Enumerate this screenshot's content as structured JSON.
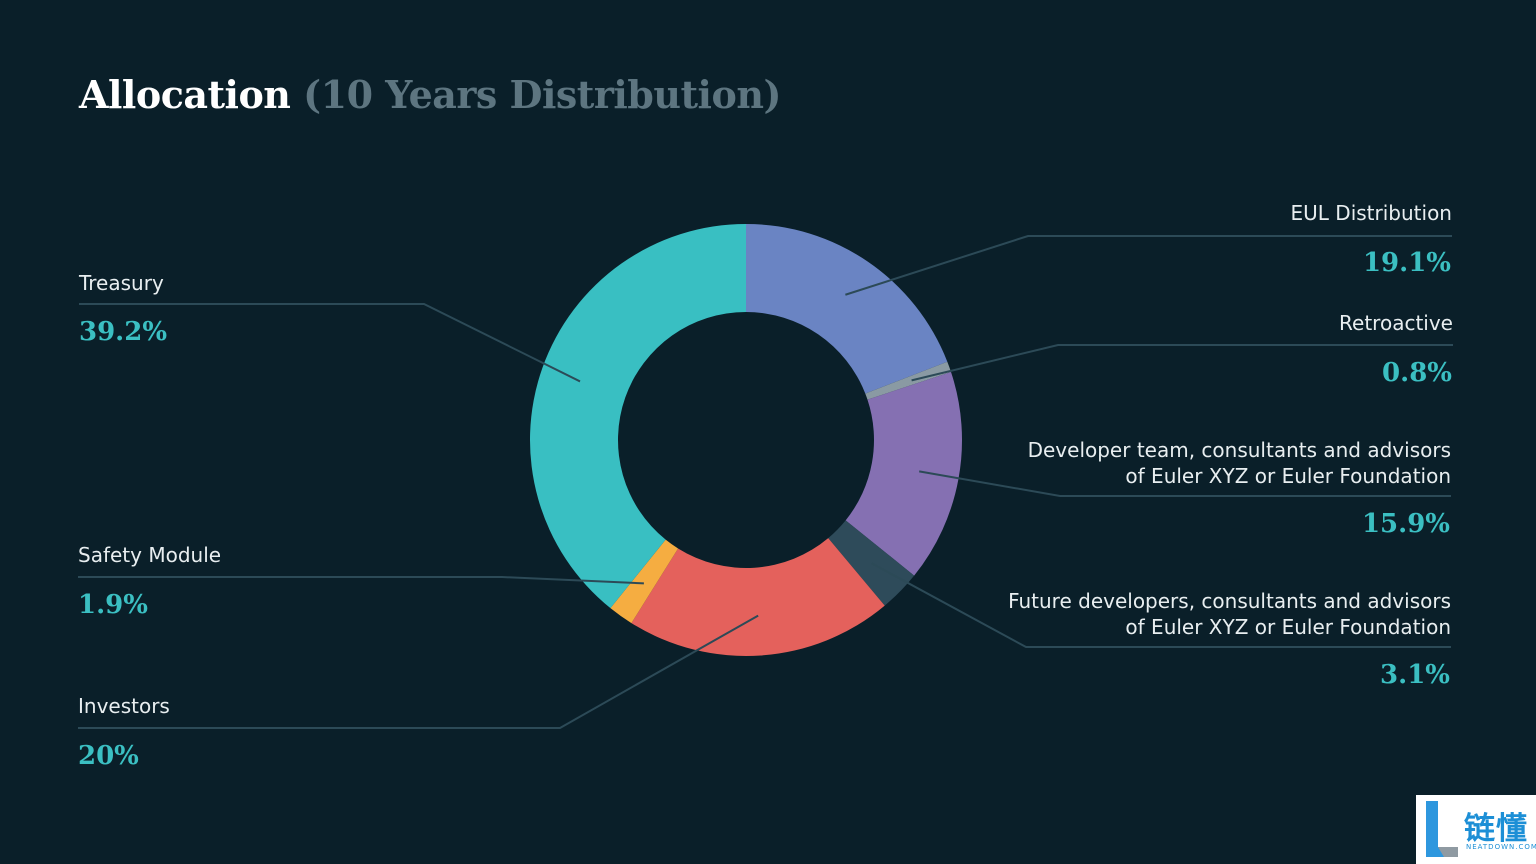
{
  "title": {
    "main": "Allocation",
    "sub": "(10 Years Distribution)"
  },
  "chart_data": {
    "type": "pie",
    "style": "donut",
    "start_angle_deg": 0,
    "direction": "clockwise",
    "slices": [
      {
        "label": "EUL Distribution",
        "value": 19.1,
        "value_label": "19.1%",
        "color": "#6a84c3"
      },
      {
        "label": "Retroactive",
        "value": 0.8,
        "value_label": "0.8%",
        "color": "#8a9aa3"
      },
      {
        "label": "Developer team, consultants and advisors of Euler XYZ or Euler Foundation",
        "label_lines": [
          "Developer team, consultants and advisors",
          "of Euler XYZ or Euler Foundation"
        ],
        "value": 15.9,
        "value_label": "15.9%",
        "color": "#8570b2"
      },
      {
        "label": "Future developers, consultants and advisors of Euler XYZ or Euler Foundation",
        "label_lines": [
          "Future developers, consultants and advisors",
          "of Euler XYZ or Euler Foundation"
        ],
        "value": 3.1,
        "value_label": "3.1%",
        "color": "#2e4b5a"
      },
      {
        "label": "Investors",
        "value": 20,
        "value_label": "20%",
        "color": "#e4615c"
      },
      {
        "label": "Safety Module",
        "value": 1.9,
        "value_label": "1.9%",
        "color": "#f5ad41"
      },
      {
        "label": "Treasury",
        "value": 39.2,
        "value_label": "39.2%",
        "color": "#39bfc2"
      }
    ],
    "leader_color": "#2c4a57",
    "value_color": "#3bbfc2"
  },
  "logo": {
    "text": "链懂",
    "subtext": "NEATDOWN.COM",
    "color": "#1d8fd6"
  }
}
